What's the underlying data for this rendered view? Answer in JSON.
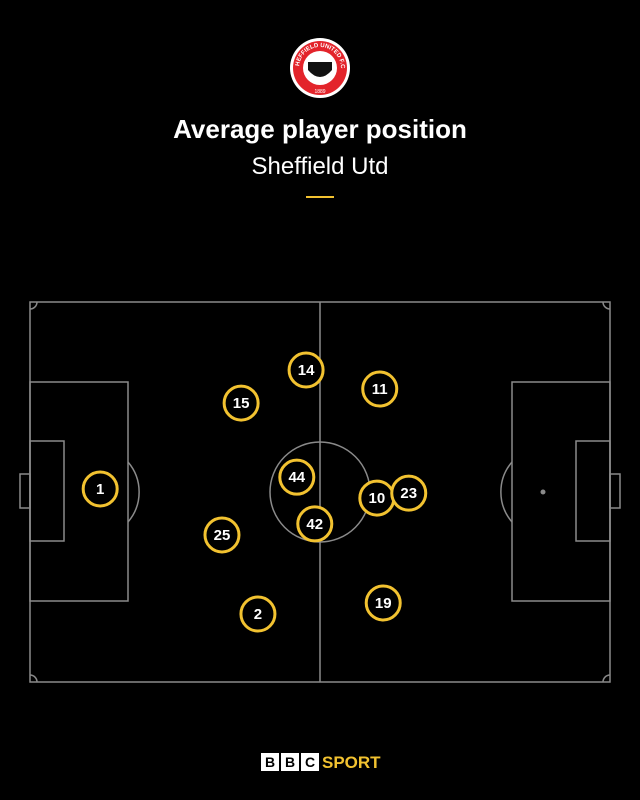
{
  "crest": {
    "name": "SHEFFIELD UNITED F.C.",
    "year": "1889"
  },
  "brand": {
    "letters": [
      "B",
      "B",
      "C"
    ],
    "name": "SPORT"
  },
  "chart_data": {
    "type": "scatter",
    "title": "Average player position",
    "subtitle": "Sheffield Utd",
    "xlim": [
      0,
      100
    ],
    "ylim": [
      0,
      100
    ],
    "color": "#f2c230",
    "labels": [
      "1",
      "14",
      "15",
      "11",
      "44",
      "10",
      "23",
      "42",
      "25",
      "2",
      "19"
    ],
    "x": [
      12.1,
      47.6,
      36.4,
      60.3,
      46.0,
      59.8,
      65.3,
      49.1,
      33.1,
      39.3,
      60.9
    ],
    "y": [
      50.8,
      82.1,
      73.4,
      77.1,
      53.9,
      48.4,
      49.7,
      41.6,
      38.7,
      17.9,
      20.8
    ]
  }
}
